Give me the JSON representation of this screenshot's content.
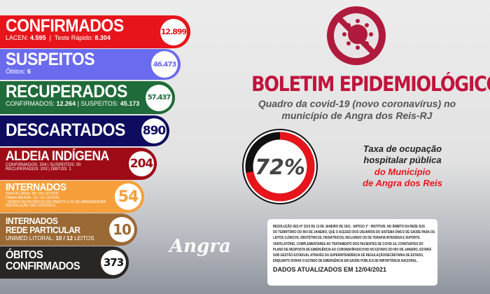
{
  "stats": {
    "confirmados": {
      "title": "CONFIRMADOS",
      "lacen_label": "LACEN:",
      "lacen": "4.595",
      "teste_label": "Teste Rápido:",
      "teste": "8.304",
      "total": "12.899",
      "color": "#e8141b"
    },
    "suspeitos": {
      "title": "SUSPEITOS",
      "obitos_label": "Óbitos:",
      "obitos": "6",
      "total": "46.473",
      "color": "#6b6bef"
    },
    "recuperados": {
      "title": "RECUPERADOS",
      "conf_label": "CONFIRMADOS:",
      "conf": "12.264",
      "susp_label": "SUSPEITOS:",
      "susp": "45.173",
      "total": "57.437",
      "color": "#1f6b39"
    },
    "descartados": {
      "title": "DESCARTADOS",
      "total": "890",
      "color": "#0e0c5e"
    },
    "aldeia": {
      "title": "ALDEIA INDÍGENA",
      "line1": "CONFIRMADOS: 204 | SUSPEITOS: 00",
      "line2": "RECUPERADOS: 203 | ÓBITOS: 1",
      "total": "204",
      "color": "#9e0b16"
    },
    "internados": {
      "title": "INTERNADOS",
      "line1": "SANTA CASA: 39 / 60 LEITOS",
      "line2": "PRAIA BRAVA: 15 / 15 LEITOS",
      "line3": "- SENDO 04 PACIENTES DE PARATY E 01 DE MANGARATIBA",
      "line4": "(RESOLUÇÃO SES 2210/2021)",
      "total": "54",
      "color": "#f7a03b"
    },
    "particular": {
      "title1": "INTERNADOS",
      "title2": "REDE PARTICULAR",
      "unimed_label": "UNIMED LITORAL:",
      "unimed": "10 / 12",
      "leitos": "LEITOS",
      "total": "10",
      "color": "#9b6934"
    },
    "obitos": {
      "title1": "ÓBITOS",
      "title2": "CONFIRMADOS",
      "total": "373",
      "color": "#2a2624"
    }
  },
  "header": {
    "title": "BOLETIM EPIDEMIOLÓGICO",
    "subtitle1": "Quadro da covid-19 (novo coronavírus) no",
    "subtitle2": "município de Angra dos Reis-RJ",
    "icon": "no-virus-icon"
  },
  "occupancy": {
    "value": 72,
    "label": "72%",
    "text1": "Taxa de ocupação",
    "text2": "hospitalar pública",
    "text3": "do Município",
    "text4": "de Angra dos Reis",
    "fill_color": "#e8141b",
    "rest_color": "#111111"
  },
  "note": {
    "lines": [
      "RESOLUÇÃO SES Nº 2210 DE 13 DE JANEIRO DE 2021 - ARTIGO 1º - INSTITUIR, NO ÂMBITO DA REDE SUS",
      "DO TERRITÓRIO DO RIO DE JANEIRO, QUE O ACESSO DOS USUÁRIOS DO SISTEMA ÚNICO DE SAÚDE PARA OS",
      "LEITOS CLÍNICOS, OBSTÉTRICOS, PEDIÁTRICOS, INCLUINDO OS DE TERAPIA INTENSIVA E SUPORTE",
      "VENTILATÓRIO, COMPLEMENTARES AO TRATAMENTO DOS PACIENTES DE COVID-19, CONSTANTES DO",
      "PLANO DE RESPOSTA DE EMERGÊNCIA AO CORONAVÍRUS/COVID NO ESTADO DO RIO DE JANEIRO, ESTARÁ",
      "SOB GESTÃO ESTADUAL ATRAVÉS DA SUPERINTENDÊNCIA DE REGULAÇÃO/SECRETARIA DE ESTADO,",
      "ENQUANTO DURAR O ESTADO DE EMERGÊNCIA EM SAÚDE PÚBLICA DE IMPORTÂNCIA NACIONAL."
    ],
    "updated": "DADOS ATUALIZADOS EM 12/04/2021"
  },
  "logo": "Angra"
}
